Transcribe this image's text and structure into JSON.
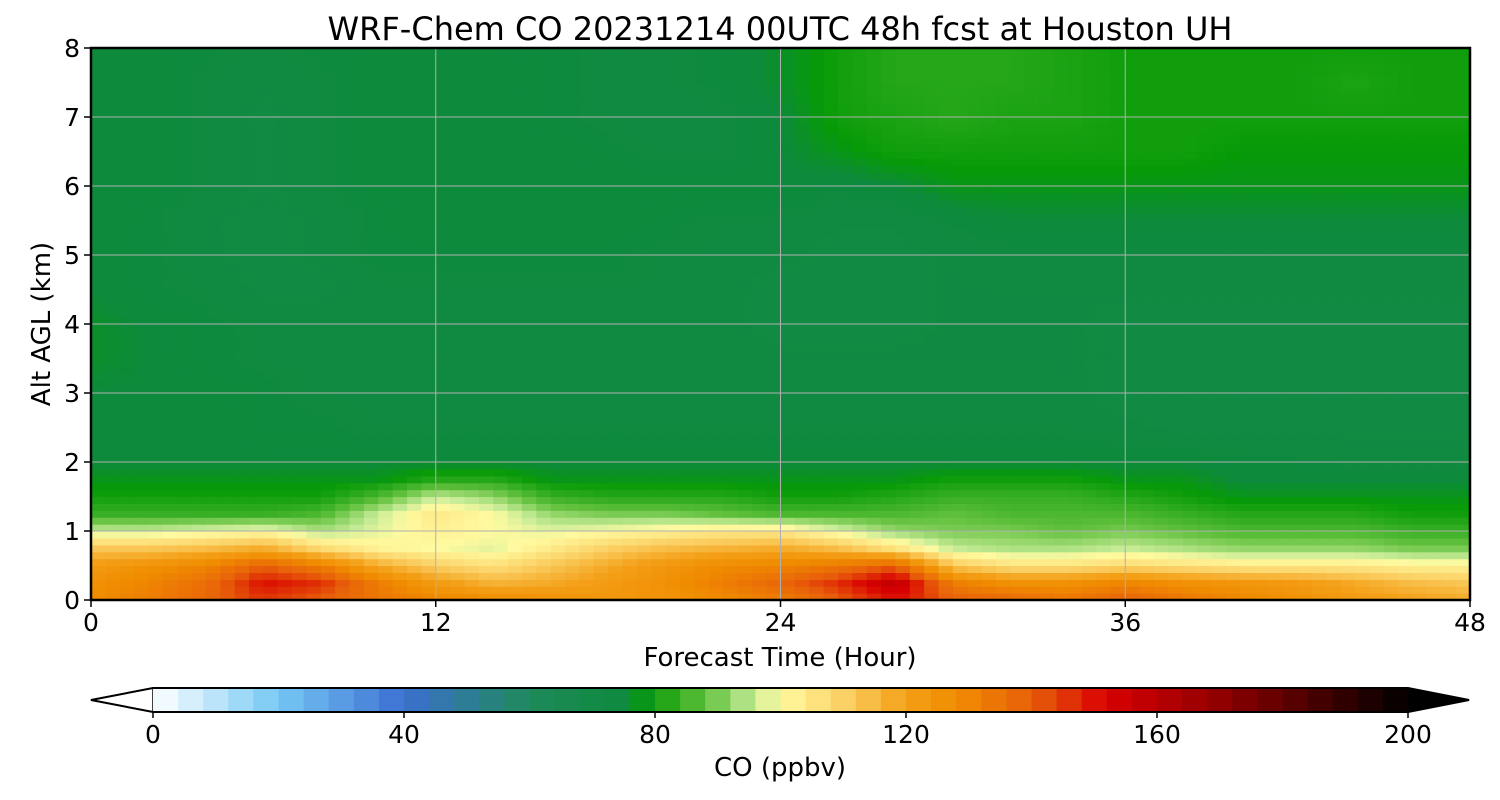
{
  "chart_data": {
    "type": "heatmap",
    "title": "WRF-Chem CO  20231214 00UTC 48h fcst at Houston UH",
    "xlabel": "Forecast Time (Hour)",
    "ylabel": "Alt AGL (km)",
    "xlim": [
      0,
      48
    ],
    "ylim": [
      0,
      8
    ],
    "xticks": [
      0,
      12,
      24,
      36,
      48
    ],
    "yticks": [
      0,
      1,
      2,
      3,
      4,
      5,
      6,
      7,
      8
    ],
    "grid": true,
    "x_hours": [
      0,
      2,
      4,
      6,
      8,
      10,
      12,
      14,
      16,
      18,
      20,
      22,
      24,
      26,
      28,
      30,
      32,
      34,
      36,
      38,
      40,
      42,
      44,
      46,
      48
    ],
    "y_km": [
      0,
      0.25,
      0.5,
      0.75,
      1,
      1.25,
      1.5,
      1.75,
      2,
      2.5,
      3,
      3.5,
      4,
      4.5,
      5,
      5.5,
      6,
      6.5,
      7,
      7.5,
      8
    ],
    "z_ppbv": [
      [
        128,
        132,
        138,
        145,
        140,
        134,
        130,
        128,
        126,
        124,
        125,
        128,
        132,
        140,
        150,
        140,
        138,
        134,
        140,
        134,
        130,
        126,
        122,
        120,
        118
      ],
      [
        126,
        130,
        136,
        150,
        146,
        132,
        122,
        116,
        118,
        122,
        126,
        132,
        138,
        146,
        158,
        132,
        126,
        126,
        130,
        126,
        124,
        122,
        118,
        114,
        112
      ],
      [
        122,
        126,
        130,
        140,
        132,
        118,
        110,
        106,
        112,
        118,
        124,
        128,
        130,
        134,
        140,
        112,
        106,
        106,
        108,
        106,
        104,
        104,
        104,
        102,
        102
      ],
      [
        112,
        112,
        114,
        118,
        108,
        102,
        100,
        98,
        104,
        110,
        114,
        116,
        118,
        114,
        106,
        96,
        94,
        94,
        96,
        94,
        92,
        92,
        92,
        90,
        90
      ],
      [
        96,
        96,
        98,
        100,
        94,
        98,
        102,
        100,
        98,
        100,
        102,
        104,
        104,
        98,
        92,
        90,
        90,
        88,
        90,
        88,
        86,
        86,
        86,
        84,
        84
      ],
      [
        84,
        84,
        84,
        84,
        86,
        96,
        104,
        100,
        92,
        90,
        90,
        88,
        86,
        86,
        86,
        88,
        86,
        86,
        86,
        84,
        82,
        82,
        82,
        80,
        80
      ],
      [
        80,
        80,
        80,
        80,
        80,
        86,
        96,
        92,
        84,
        82,
        82,
        82,
        80,
        80,
        82,
        84,
        84,
        84,
        82,
        80,
        78,
        78,
        78,
        78,
        78
      ],
      [
        78,
        78,
        78,
        78,
        78,
        78,
        82,
        82,
        78,
        78,
        78,
        78,
        78,
        78,
        78,
        80,
        80,
        80,
        78,
        78,
        76,
        76,
        76,
        76,
        76
      ],
      [
        76,
        76,
        76,
        76,
        76,
        76,
        76,
        76,
        76,
        76,
        76,
        76,
        76,
        76,
        76,
        76,
        76,
        76,
        76,
        76,
        75,
        75,
        74,
        74,
        74
      ],
      [
        76,
        76,
        76,
        75,
        75,
        74,
        74,
        74,
        74,
        74,
        74,
        74,
        74,
        74,
        74,
        74,
        74,
        74,
        73,
        72,
        72,
        72,
        72,
        72,
        72
      ],
      [
        76,
        76,
        76,
        75,
        74,
        74,
        74,
        74,
        74,
        74,
        74,
        74,
        74,
        74,
        74,
        74,
        74,
        73,
        72,
        72,
        72,
        72,
        72,
        72,
        72
      ],
      [
        77,
        76,
        75,
        74,
        74,
        74,
        74,
        74,
        74,
        74,
        74,
        74,
        73,
        73,
        73,
        73,
        73,
        73,
        72,
        72,
        72,
        72,
        72,
        72,
        72
      ],
      [
        77,
        76,
        75,
        74,
        74,
        74,
        74,
        74,
        74,
        74,
        74,
        73,
        72,
        72,
        72,
        73,
        73,
        73,
        72,
        72,
        72,
        72,
        72,
        72,
        72
      ],
      [
        76,
        75,
        74,
        72,
        72,
        74,
        74,
        74,
        74,
        74,
        74,
        73,
        72,
        72,
        72,
        73,
        73,
        73,
        73,
        73,
        73,
        73,
        73,
        73,
        73
      ],
      [
        76,
        75,
        73,
        72,
        73,
        75,
        75,
        75,
        75,
        75,
        74,
        74,
        73,
        72,
        72,
        73,
        74,
        74,
        74,
        74,
        74,
        74,
        74,
        74,
        74
      ],
      [
        76,
        75,
        73,
        72,
        73,
        75,
        76,
        76,
        76,
        76,
        75,
        74,
        74,
        73,
        73,
        75,
        76,
        76,
        76,
        76,
        76,
        76,
        76,
        76,
        76
      ],
      [
        76,
        76,
        74,
        72,
        74,
        76,
        76,
        76,
        76,
        76,
        76,
        76,
        76,
        75,
        76,
        78,
        78,
        78,
        78,
        78,
        78,
        78,
        78,
        78,
        78
      ],
      [
        76,
        76,
        74,
        72,
        74,
        76,
        76,
        76,
        76,
        75,
        74,
        74,
        76,
        78,
        80,
        80,
        80,
        80,
        80,
        80,
        79,
        79,
        79,
        79,
        79
      ],
      [
        76,
        76,
        74,
        72,
        74,
        76,
        76,
        76,
        75,
        74,
        73,
        74,
        76,
        80,
        81,
        82,
        81,
        81,
        80,
        80,
        80,
        80,
        80,
        80,
        80
      ],
      [
        76,
        76,
        74,
        73,
        74,
        76,
        76,
        76,
        75,
        74,
        74,
        75,
        77,
        80,
        82,
        82,
        82,
        81,
        80,
        80,
        80,
        80,
        81,
        80,
        80
      ],
      [
        76,
        76,
        75,
        74,
        75,
        76,
        76,
        76,
        75,
        74,
        74,
        75,
        77,
        80,
        82,
        82,
        82,
        81,
        80,
        80,
        80,
        80,
        80,
        80,
        80
      ]
    ],
    "colorbar": {
      "label": "CO  (ppbv)",
      "ticks": [
        0,
        40,
        80,
        120,
        160,
        200
      ],
      "min": 0,
      "max": 200,
      "extend": "both",
      "stops": [
        [
          0,
          "#ffffff"
        ],
        [
          20,
          "#76c8f5"
        ],
        [
          40,
          "#3c6fd1"
        ],
        [
          60,
          "#1e8a5a"
        ],
        [
          76,
          "#0d8a3c"
        ],
        [
          79,
          "#079a07"
        ],
        [
          88,
          "#60c03c"
        ],
        [
          96,
          "#c8ec98"
        ],
        [
          100,
          "#fffaa0"
        ],
        [
          110,
          "#fbd064"
        ],
        [
          120,
          "#f4a018"
        ],
        [
          128,
          "#f08c00"
        ],
        [
          140,
          "#e8600a"
        ],
        [
          152,
          "#d80000"
        ],
        [
          170,
          "#900000"
        ],
        [
          200,
          "#000000"
        ]
      ]
    }
  }
}
